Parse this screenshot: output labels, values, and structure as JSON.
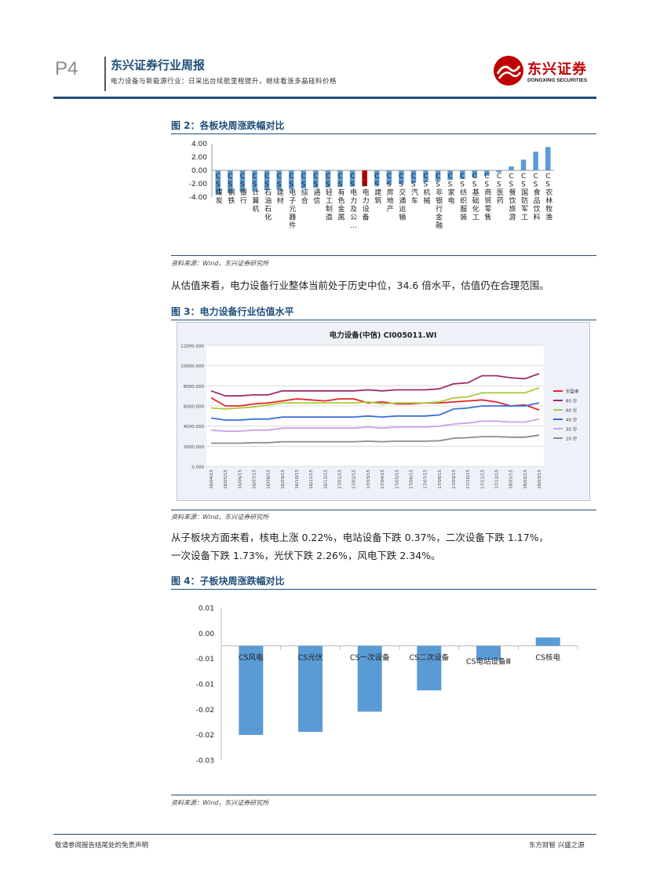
{
  "header": {
    "page_num": "P4",
    "report_title": "东兴证券行业周报",
    "subtitle": "电力设备与新能源行业：日采出台续航里程提升，继续看涨多晶硅料价格",
    "logo_cn": "东兴证券",
    "logo_en": "DONGXING SECURITIES"
  },
  "figures": {
    "fig2_title": "图 2：各板块周涨跌幅对比",
    "fig2_source": "资料来源：Wind，东兴证券研究所",
    "para1": "从估值来看，电力设备行业整体当前处于历史中位，34.6 倍水平，估值仍在合理范围。",
    "fig3_title": "图 3：电力设备行业估值水平",
    "fig3_source": "资料来源：Wind，东兴证券研究所",
    "para2_line1": "从子板块方面来看，核电上涨 0.22%，电站设备下跌 0.37%，二次设备下跌 1.17%，",
    "para2_line2": "一次设备下跌 1.73%，光伏下跌 2.26%，风电下跌 2.34%。",
    "fig4_title": "图 4：子板块周涨跌幅对比",
    "fig4_source": "资料来源：Wind，东兴证券研究所"
  },
  "footer": {
    "left": "敬请参阅报告结尾处的免责声明",
    "right": "东方财智 兴盛之源"
  },
  "colors": {
    "brand": "#1f4e79",
    "bar": "#5b9bd5",
    "highlight": "#c00000"
  },
  "chart_data": [
    {
      "type": "bar",
      "title": "",
      "categories": [
        "CS煤炭",
        "CS钢铁",
        "CS银行",
        "CS计算机",
        "CS石油石化",
        "CS建材",
        "CS电子元器件",
        "CS综合",
        "CS通信",
        "CS轻工制造",
        "CS有色金属",
        "CS电力及公…",
        "CS电力设备",
        "CS建筑",
        "CS房地产",
        "CS交通运输",
        "CS汽车",
        "CS机械",
        "CS非银行金融",
        "CS家电",
        "CS纺织服装",
        "CS基础化工",
        "CS商贸零售",
        "CS医药",
        "CS餐饮旅游",
        "CS国防军工",
        "CS食品饮料",
        "CS农林牧渔"
      ],
      "values": [
        -3.6,
        -3.4,
        -3.2,
        -3.1,
        -3.0,
        -2.9,
        -2.8,
        -2.7,
        -2.6,
        -2.55,
        -2.45,
        -2.4,
        -2.34,
        -2.25,
        -2.15,
        -2.05,
        -1.9,
        -1.75,
        -1.6,
        -1.45,
        -1.3,
        -1.1,
        -0.8,
        -0.3,
        0.6,
        1.6,
        2.8,
        3.5
      ],
      "highlight_index": 12,
      "yticks": [
        "4.00",
        "2.00",
        "0.00",
        "-2.00",
        "-4.00"
      ],
      "ylim": [
        -4,
        4
      ]
    },
    {
      "type": "line",
      "title": "电力设备(中信) CI005011.WI",
      "yticks": [
        "12000.000",
        "10000.000",
        "8000.000",
        "6000.000",
        "4000.000",
        "2000.000",
        "0.000"
      ],
      "ylim": [
        0,
        12000
      ],
      "xticks": [
        "16/04/15",
        "16/05/15",
        "16/06/15",
        "16/07/15",
        "16/08/15",
        "16/09/15",
        "16/10/15",
        "16/11/15",
        "16/12/15",
        "17/01/15",
        "17/02/15",
        "17/03/15",
        "17/04/15",
        "17/05/15",
        "17/06/15",
        "17/07/15",
        "17/08/15",
        "17/09/15",
        "17/10/15",
        "17/11/15",
        "17/12/15",
        "18/01/15",
        "18/02/15",
        "18/03/15"
      ],
      "series": [
        {
          "name": "市盈率",
          "color": "#e8232a",
          "values": [
            6800,
            6000,
            6000,
            6200,
            6300,
            6500,
            6700,
            6600,
            6500,
            6700,
            6700,
            6300,
            6400,
            6200,
            6200,
            6300,
            6300,
            6400,
            6500,
            6600,
            6400,
            6000,
            6100,
            5600
          ]
        },
        {
          "name": "80 分",
          "color": "#9b2d6a",
          "values": [
            7500,
            7000,
            7000,
            7100,
            7100,
            7500,
            7500,
            7500,
            7500,
            7500,
            7500,
            7600,
            7500,
            7600,
            7600,
            7600,
            7700,
            8200,
            8300,
            9000,
            9000,
            8800,
            8700,
            9200
          ]
        },
        {
          "name": "60 分",
          "color": "#a9cc3a",
          "values": [
            5800,
            5700,
            5800,
            5900,
            6100,
            6300,
            6300,
            6300,
            6300,
            6300,
            6300,
            6400,
            6200,
            6300,
            6300,
            6300,
            6400,
            6800,
            6900,
            7300,
            7300,
            7300,
            7300,
            7800
          ]
        },
        {
          "name": "40 分",
          "color": "#3b6fd6",
          "values": [
            4800,
            4600,
            4600,
            4700,
            4700,
            4900,
            4900,
            4900,
            4900,
            4900,
            4900,
            5000,
            4900,
            5000,
            5000,
            5000,
            5100,
            5700,
            5800,
            6000,
            6000,
            6000,
            6000,
            6300
          ]
        },
        {
          "name": "30 分",
          "color": "#c9a3e8",
          "values": [
            3600,
            3500,
            3500,
            3600,
            3600,
            3800,
            3800,
            3800,
            3800,
            3800,
            3800,
            3900,
            3800,
            3900,
            3900,
            3900,
            4000,
            4200,
            4300,
            4500,
            4500,
            4400,
            4400,
            4700
          ]
        },
        {
          "name": "20 分",
          "color": "#8c8c8c",
          "values": [
            2300,
            2300,
            2300,
            2350,
            2350,
            2450,
            2450,
            2450,
            2450,
            2450,
            2450,
            2500,
            2450,
            2500,
            2500,
            2500,
            2550,
            2800,
            2850,
            2950,
            2950,
            2900,
            2900,
            3100
          ]
        }
      ]
    },
    {
      "type": "bar",
      "title": "",
      "categories": [
        "CS风电",
        "CS光伏",
        "CS一次设备",
        "CS二次设备",
        "CS电站设备Ⅲ",
        "CS核电"
      ],
      "values": [
        -0.0234,
        -0.0226,
        -0.0173,
        -0.0117,
        -0.0037,
        0.0022
      ],
      "yticks": [
        "0.01",
        "0.00",
        "-0.01",
        "-0.01",
        "-0.02",
        "-0.02",
        "-0.03"
      ],
      "ylim": [
        -0.03,
        0.01
      ]
    }
  ]
}
